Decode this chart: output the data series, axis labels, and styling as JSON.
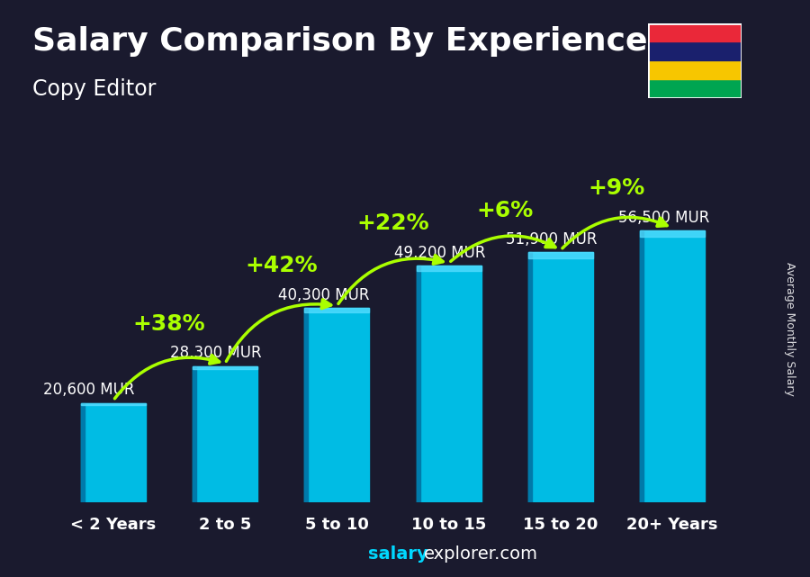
{
  "title": "Salary Comparison By Experience",
  "subtitle": "Copy Editor",
  "categories": [
    "< 2 Years",
    "2 to 5",
    "5 to 10",
    "10 to 15",
    "15 to 20",
    "20+ Years"
  ],
  "values": [
    20600,
    28300,
    40300,
    49200,
    51900,
    56500
  ],
  "value_labels": [
    "20,600 MUR",
    "28,300 MUR",
    "40,300 MUR",
    "49,200 MUR",
    "51,900 MUR",
    "56,500 MUR"
  ],
  "pct_changes": [
    "+38%",
    "+42%",
    "+22%",
    "+6%",
    "+9%"
  ],
  "bar_color_face": "#00bce4",
  "bar_color_left": "#007aaa",
  "bar_color_top": "#55ddff",
  "bg_color": "#1a1a2e",
  "text_color": "#ffffff",
  "pct_color": "#aaff00",
  "ylabel": "Average Monthly Salary",
  "footer_bold": "salary",
  "footer_normal": "explorer.com",
  "ylim": [
    0,
    72000
  ],
  "flag_stripes": [
    "#EA2839",
    "#1A206D",
    "#F7C600",
    "#00A551"
  ],
  "title_fontsize": 26,
  "subtitle_fontsize": 17,
  "cat_fontsize": 13,
  "val_fontsize": 12,
  "pct_fontsize": 18,
  "footer_fontsize": 14
}
